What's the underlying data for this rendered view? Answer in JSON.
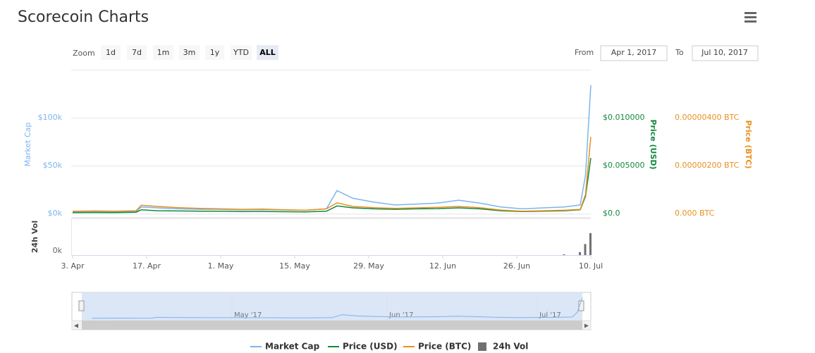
{
  "chart_data": {
    "type": "line",
    "title": "Scorecoin Charts",
    "range_selector": {
      "zoom_label": "Zoom",
      "buttons": [
        "1d",
        "7d",
        "1m",
        "3m",
        "1y",
        "YTD",
        "ALL"
      ],
      "selected_index": 6
    },
    "date_range": {
      "from_label": "From",
      "from": "Apr 1, 2017",
      "to_label": "To",
      "to": "Jul 10, 2017"
    },
    "x": [
      "2017-04-03",
      "2017-04-07",
      "2017-04-11",
      "2017-04-15",
      "2017-04-16",
      "2017-04-19",
      "2017-04-23",
      "2017-04-27",
      "2017-05-01",
      "2017-05-05",
      "2017-05-09",
      "2017-05-13",
      "2017-05-17",
      "2017-05-21",
      "2017-05-23",
      "2017-05-26",
      "2017-05-30",
      "2017-06-03",
      "2017-06-07",
      "2017-06-11",
      "2017-06-15",
      "2017-06-19",
      "2017-06-23",
      "2017-06-27",
      "2017-07-01",
      "2017-07-05",
      "2017-07-08",
      "2017-07-09",
      "2017-07-10"
    ],
    "xlim": [
      "2017-04-03",
      "2017-07-10"
    ],
    "xticks": [
      {
        "value": "2017-04-03",
        "label": "3. Apr"
      },
      {
        "value": "2017-04-17",
        "label": "17. Apr"
      },
      {
        "value": "2017-05-01",
        "label": "1. May"
      },
      {
        "value": "2017-05-15",
        "label": "15. May"
      },
      {
        "value": "2017-05-29",
        "label": "29. May"
      },
      {
        "value": "2017-06-12",
        "label": "12. Jun"
      },
      {
        "value": "2017-06-26",
        "label": "26. Jun"
      },
      {
        "value": "2017-07-10",
        "label": "10. Jul"
      }
    ],
    "ylabel": "Market Cap",
    "ylim": [
      -5000,
      150000
    ],
    "yticks": [
      {
        "value": 0,
        "label": "$0k"
      },
      {
        "value": 50000,
        "label": "$50k"
      },
      {
        "value": 100000,
        "label": "$100k"
      }
    ],
    "y2label": "Price (USD)",
    "y2lim": [
      -0.0005,
      0.015
    ],
    "y2ticks": [
      {
        "value": 0,
        "label": "$0.0"
      },
      {
        "value": 0.005,
        "label": "$0.005000"
      },
      {
        "value": 0.01,
        "label": "$0.010000"
      }
    ],
    "y3label": "Price (BTC)",
    "y3lim": [
      -2e-07,
      6e-06
    ],
    "y3ticks": [
      {
        "value": 0,
        "label": "0.000 BTC"
      },
      {
        "value": 2e-06,
        "label": "0.00000200 BTC"
      },
      {
        "value": 4e-06,
        "label": "0.00000400 BTC"
      }
    ],
    "volume_label": "24h Vol",
    "volume_ylim": [
      0,
      5000
    ],
    "volume_yticks": [
      {
        "value": 0,
        "label": "0k"
      }
    ],
    "grid": true,
    "series": [
      {
        "name": "Market Cap",
        "color": "#7cb5ec",
        "axis": "y",
        "values": [
          1500,
          2000,
          1800,
          2200,
          7000,
          6000,
          5000,
          4500,
          4500,
          4000,
          4200,
          3800,
          3500,
          5000,
          24000,
          16000,
          12000,
          9000,
          10000,
          11000,
          14000,
          11000,
          7000,
          5000,
          6000,
          7000,
          9000,
          40000,
          134000
        ]
      },
      {
        "name": "Price (USD)",
        "color": "#13893c",
        "axis": "y2",
        "values": [
          0.0001,
          0.00012,
          0.0001,
          0.00015,
          0.0004,
          0.0003,
          0.00028,
          0.00025,
          0.00025,
          0.00022,
          0.00023,
          0.0002,
          0.00018,
          0.00025,
          0.0008,
          0.0006,
          0.0005,
          0.00045,
          0.0005,
          0.00052,
          0.0006,
          0.0005,
          0.0003,
          0.00022,
          0.00025,
          0.0003,
          0.0004,
          0.0018,
          0.0058
        ]
      },
      {
        "name": "Price (BTC)",
        "color": "#e8901f",
        "axis": "y3",
        "values": [
          1e-07,
          1.1e-07,
          1e-07,
          1.2e-07,
          3.5e-07,
          3e-07,
          2.5e-07,
          2.2e-07,
          2e-07,
          1.8e-07,
          1.9e-07,
          1.6e-07,
          1.4e-07,
          2e-07,
          4.5e-07,
          3e-07,
          2.5e-07,
          2.2e-07,
          2.4e-07,
          2.6e-07,
          3e-07,
          2.5e-07,
          1.5e-07,
          1e-07,
          1.2e-07,
          1.4e-07,
          1.8e-07,
          8e-07,
          3.2e-06
        ]
      },
      {
        "name": "24h Vol",
        "color": "#707070",
        "axis": "volume",
        "type": "bar",
        "values": [
          0,
          0,
          0,
          0,
          0,
          0,
          0,
          0,
          0,
          0,
          0,
          0,
          0,
          0,
          0,
          0,
          0,
          0,
          0,
          0,
          0,
          0,
          0,
          0,
          0,
          100,
          400,
          1500,
          3000
        ]
      }
    ],
    "navigator": {
      "xlim": [
        "2017-04-01",
        "2017-07-10"
      ],
      "xticks": [
        {
          "value": "2017-05-01",
          "label": "May '17"
        },
        {
          "value": "2017-06-01",
          "label": "Jun '17"
        },
        {
          "value": "2017-07-01",
          "label": "Jul '17"
        }
      ]
    }
  }
}
